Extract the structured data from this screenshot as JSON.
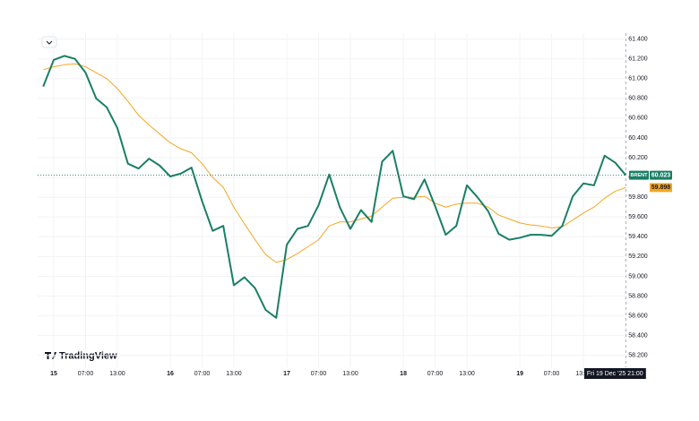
{
  "logo": "TradingView",
  "chart_data": {
    "type": "line",
    "categories": [
      null,
      "15",
      null,
      null,
      "07:00",
      null,
      null,
      "13:00",
      null,
      null,
      null,
      null,
      "16",
      null,
      null,
      "07:00",
      null,
      null,
      "13:00",
      null,
      null,
      null,
      null,
      "17",
      null,
      null,
      "07:00",
      null,
      null,
      "13:00",
      null,
      null,
      null,
      null,
      "18",
      null,
      null,
      "07:00",
      null,
      null,
      "13:00",
      null,
      null,
      null,
      null,
      "19",
      null,
      null,
      "07:00",
      null,
      null,
      "13:00",
      null,
      null,
      null,
      "Fri 19 Dec '25  21:00"
    ],
    "series": [
      {
        "name": "BRENT",
        "color": "#1a7f64",
        "values": [
          60.92,
          61.19,
          61.23,
          61.2,
          61.06,
          60.8,
          60.71,
          60.5,
          60.14,
          60.09,
          60.19,
          60.12,
          60.01,
          60.04,
          60.1,
          59.76,
          59.46,
          59.51,
          58.91,
          58.99,
          58.88,
          58.66,
          58.58,
          59.32,
          59.48,
          59.51,
          59.72,
          60.03,
          59.7,
          59.48,
          59.67,
          59.55,
          60.16,
          60.27,
          59.81,
          59.78,
          59.98,
          59.71,
          59.42,
          59.51,
          59.92,
          59.8,
          59.66,
          59.43,
          59.37,
          59.39,
          59.42,
          59.42,
          59.41,
          59.51,
          59.81,
          59.94,
          59.92,
          60.22,
          60.15,
          60.023
        ]
      },
      {
        "color": "#f5a623",
        "values": [
          61.09,
          61.12,
          61.14,
          61.15,
          61.12,
          61.06,
          61.0,
          60.9,
          60.77,
          60.63,
          60.53,
          60.44,
          60.35,
          60.29,
          60.25,
          60.14,
          60.0,
          59.9,
          59.7,
          59.53,
          59.37,
          59.22,
          59.14,
          59.17,
          59.23,
          59.3,
          59.37,
          59.51,
          59.55,
          59.55,
          59.58,
          59.61,
          59.7,
          59.79,
          59.8,
          59.8,
          59.81,
          59.74,
          59.7,
          59.73,
          59.74,
          59.74,
          59.7,
          59.62,
          59.58,
          59.54,
          59.52,
          59.51,
          59.49,
          59.5,
          59.57,
          59.64,
          59.7,
          59.79,
          59.86,
          59.898
        ]
      }
    ],
    "ylim": [
      58.08,
      61.46
    ],
    "yticks": [
      {
        "value": 58.2,
        "label": "58.200"
      },
      {
        "value": 58.4,
        "label": "58.400"
      },
      {
        "value": 58.6,
        "label": "58.600"
      },
      {
        "value": 58.8,
        "label": "58.800"
      },
      {
        "value": 59.0,
        "label": "59.000"
      },
      {
        "value": 59.2,
        "label": "59.200"
      },
      {
        "value": 59.4,
        "label": "59.400"
      },
      {
        "value": 59.6,
        "label": "59.600"
      },
      {
        "value": 59.8,
        "label": "59.800"
      },
      {
        "value": 60.0,
        "label": "60.000"
      },
      {
        "value": 60.2,
        "label": "60.200"
      },
      {
        "value": 60.4,
        "label": "60.400"
      },
      {
        "value": 60.6,
        "label": "60.600"
      },
      {
        "value": 60.8,
        "label": "60.800"
      },
      {
        "value": 61.0,
        "label": "61.000"
      },
      {
        "value": 61.2,
        "label": "61.200"
      },
      {
        "value": 61.4,
        "label": "61.400"
      }
    ],
    "grid": true
  }
}
